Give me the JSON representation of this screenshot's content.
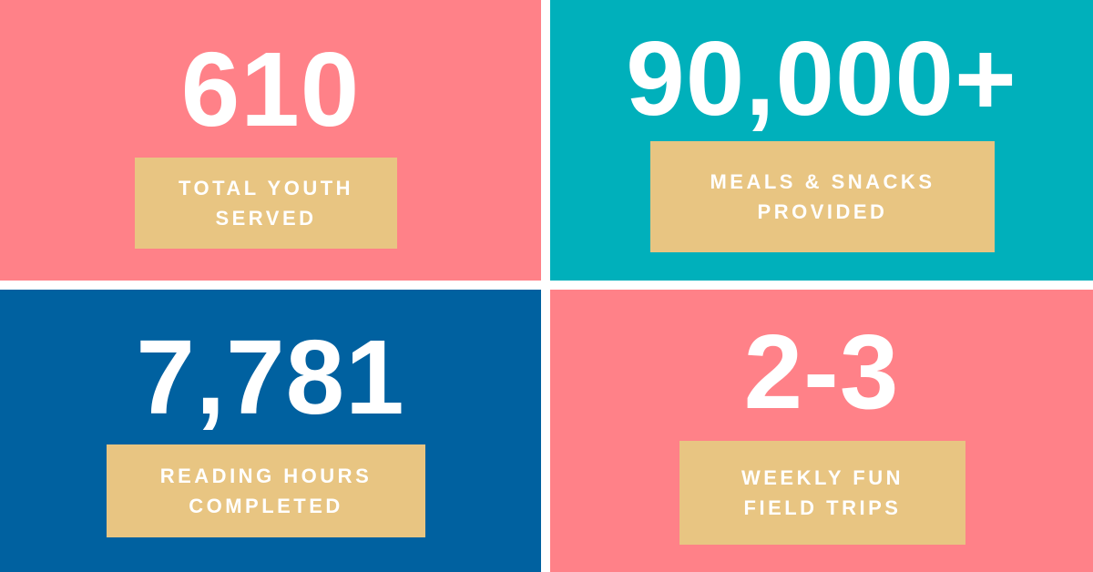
{
  "tiles": [
    {
      "stat": "610",
      "label": [
        "TOTAL YOUTH",
        "SERVED"
      ]
    },
    {
      "stat": "90,000+",
      "label": [
        "MEALS & SNACKS",
        "PROVIDED"
      ]
    },
    {
      "stat": "7,781",
      "label": [
        "READING HOURS",
        "COMPLETED"
      ]
    },
    {
      "stat": "2-3",
      "label": [
        "WEEKLY FUN",
        "FIELD TRIPS"
      ]
    }
  ]
}
